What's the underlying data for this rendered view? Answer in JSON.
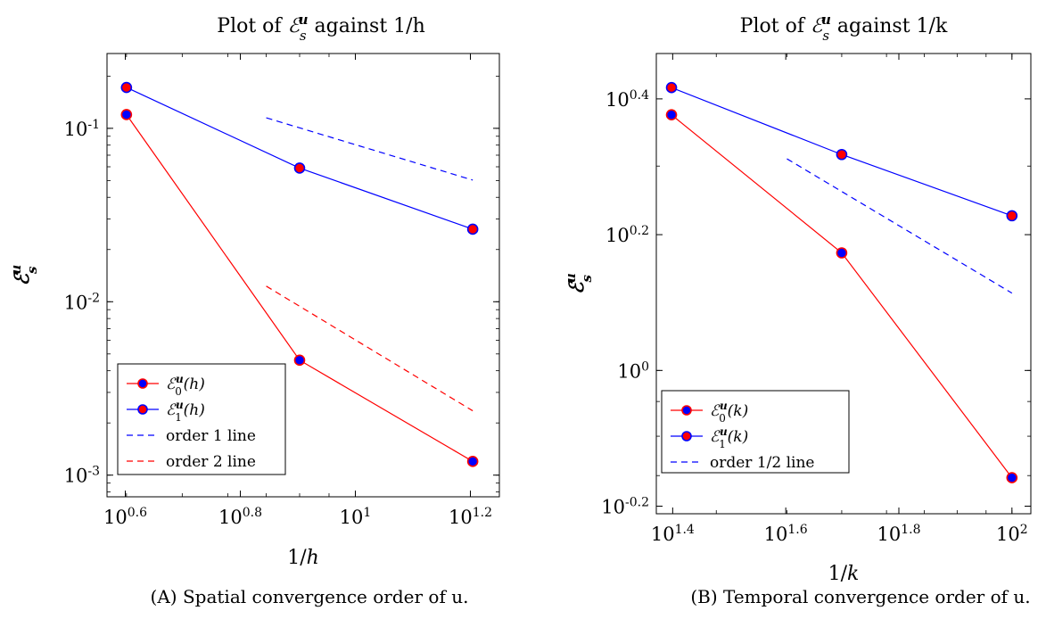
{
  "chart_data": [
    {
      "type": "line",
      "title": "Plot of ℰ_s^u against 1/h",
      "xlabel": "1/h",
      "ylabel": "ℰ_s^u",
      "xscale": "log",
      "yscale": "log",
      "xlim": [
        3.7,
        17.8
      ],
      "ylim": [
        0.00075,
        0.27
      ],
      "xticks": [
        {
          "value": 3.981,
          "label": "10^0.6"
        },
        {
          "value": 6.31,
          "label": "10^0.8"
        },
        {
          "value": 10,
          "label": "10^1"
        },
        {
          "value": 15.85,
          "label": "10^1.2"
        }
      ],
      "yticks": [
        {
          "value": 0.1,
          "label": "10^-1"
        },
        {
          "value": 0.01,
          "label": "10^-2"
        },
        {
          "value": 0.001,
          "label": "10^-3"
        }
      ],
      "grid": false,
      "legend_position": "bottom-left",
      "series": [
        {
          "name": "ℰ_0^u(h)",
          "style": "solid-marker",
          "line_color": "#ff0000",
          "marker_fill": "#0000ff",
          "marker_edge": "#ff0000",
          "x": [
            4.0,
            8.0,
            16.0
          ],
          "y": [
            0.12,
            0.0046,
            0.0012
          ]
        },
        {
          "name": "ℰ_1^u(h)",
          "style": "solid-marker",
          "line_color": "#0000ff",
          "marker_fill": "#ff0000",
          "marker_edge": "#0000ff",
          "x": [
            4.0,
            8.0,
            16.0
          ],
          "y": [
            0.172,
            0.059,
            0.0262
          ]
        },
        {
          "name": "order 1 line",
          "style": "dashed",
          "line_color": "#0000ff",
          "x": [
            7.0,
            16.0
          ],
          "y": [
            0.115,
            0.0503
          ]
        },
        {
          "name": "order 2 line",
          "style": "dashed",
          "line_color": "#ff0000",
          "x": [
            7.0,
            16.0
          ],
          "y": [
            0.0123,
            0.00235
          ]
        }
      ]
    },
    {
      "type": "line",
      "title": "Plot of ℰ_s^u against 1/k",
      "xlabel": "1/k",
      "ylabel": "ℰ_s^u",
      "xscale": "log",
      "yscale": "log",
      "xlim": [
        23.5,
        108
      ],
      "ylim": [
        0.615,
        2.93
      ],
      "xticks": [
        {
          "value": 25.12,
          "label": "10^1.4"
        },
        {
          "value": 39.81,
          "label": "10^1.6"
        },
        {
          "value": 63.1,
          "label": "10^1.8"
        },
        {
          "value": 100,
          "label": "10^2"
        }
      ],
      "yticks": [
        {
          "value": 2.512,
          "label": "10^0.4"
        },
        {
          "value": 1.585,
          "label": "10^0.2"
        },
        {
          "value": 1.0,
          "label": "10^0"
        },
        {
          "value": 0.631,
          "label": "10^-0.2"
        }
      ],
      "grid": false,
      "legend_position": "bottom-left",
      "series": [
        {
          "name": "ℰ_0^u(k)",
          "style": "solid-marker",
          "line_color": "#ff0000",
          "marker_fill": "#0000ff",
          "marker_edge": "#ff0000",
          "x": [
            25.0,
            50.0,
            100.0
          ],
          "y": [
            2.38,
            1.49,
            0.695
          ]
        },
        {
          "name": "ℰ_1^u(k)",
          "style": "solid-marker",
          "line_color": "#0000ff",
          "marker_fill": "#ff0000",
          "marker_edge": "#0000ff",
          "x": [
            25.0,
            50.0,
            100.0
          ],
          "y": [
            2.61,
            2.08,
            1.69
          ]
        },
        {
          "name": "order 1/2 line",
          "style": "dashed",
          "line_color": "#0000ff",
          "x": [
            40.0,
            100.0
          ],
          "y": [
            2.05,
            1.3
          ]
        }
      ]
    }
  ],
  "captions": [
    {
      "label": "(A)",
      "text": "Spatial convergence order of u."
    },
    {
      "label": "(B)",
      "text": "Temporal convergence order of u."
    }
  ]
}
